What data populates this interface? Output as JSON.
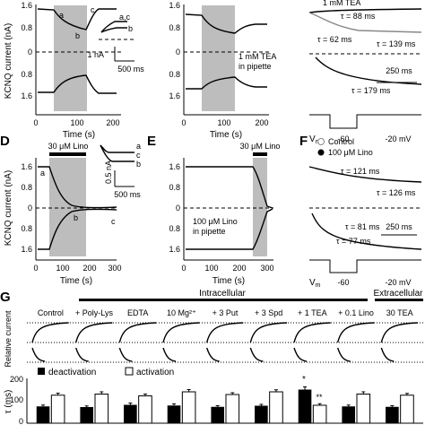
{
  "panels": {
    "A": {
      "ylabel": "KCNQ current (nA)",
      "xlabel": "Time (s)",
      "yticks_top": [
        "1.6",
        "0.8",
        "0",
        "0.8",
        "1.6"
      ],
      "xticks": [
        "0",
        "100",
        "200"
      ],
      "labels": [
        "a",
        "b",
        "c"
      ],
      "inset_labels": [
        "a,c",
        "b"
      ],
      "inset_scale_y": "1 nA",
      "inset_scale_x": "500 ms"
    },
    "B": {
      "yticks": [
        "1.6",
        "0.8",
        "0",
        "0.8",
        "1.6"
      ],
      "xticks": [
        "0",
        "100",
        "200"
      ],
      "xlabel": "Time (s)",
      "note_line1": "1 mM TEA",
      "note_line2": "in pipette"
    },
    "C": {
      "header": "1 mM TEA",
      "taus": [
        "τ = 88 ms",
        "τ = 62 ms",
        "τ = 139 ms",
        "τ = 179 ms"
      ],
      "scale": "250 ms",
      "vm": "V",
      "vm_sub": "m",
      "v1": "-60",
      "v2": "-20 mV"
    },
    "D": {
      "label": "D",
      "drug": "30 μM Lino",
      "ylabel": "KCNQ current (nA)",
      "xlabel": "Time (s)",
      "yticks": [
        "1.6",
        "0.8",
        "0",
        "0.8",
        "1.6"
      ],
      "xticks": [
        "0",
        "100",
        "200",
        "300"
      ],
      "labels": [
        "a",
        "b",
        "c"
      ],
      "inset_labels": [
        "a",
        "c",
        "b"
      ],
      "inset_scale_y": "0.5 nA",
      "inset_scale_x": "500 ms"
    },
    "E": {
      "label": "E",
      "drug": "30 μM Lino",
      "xlabel": "Time (s)",
      "yticks": [
        "1.6",
        "0.8",
        "0",
        "0.8",
        "1.6"
      ],
      "xticks": [
        "0",
        "100",
        "200",
        "300"
      ],
      "note_line1": "100 μM Lino",
      "note_line2": "in pipette"
    },
    "F": {
      "label": "F",
      "legend": [
        "Control",
        "100 μM Lino"
      ],
      "taus": [
        "τ = 121 ms",
        "τ = 126 ms",
        "τ = 81 ms",
        "τ = 77 ms"
      ],
      "scale": "250 ms",
      "vm": "V",
      "vm_sub": "m",
      "v1": "-60",
      "v2": "-20 mV"
    },
    "G": {
      "label": "G",
      "intracellular": "Intracellular",
      "extracellular": "Extracellular",
      "ylabel_top": "Relative current",
      "ylabel_bottom": "τ (ms)",
      "yticks": [
        "200",
        "100",
        "0"
      ],
      "legend_deact": "deactivation",
      "legend_act": "activation",
      "conditions": [
        "Control",
        "+ Poly-Lys",
        "EDTA",
        "10 Mg²⁺",
        "+ 3 Put",
        "+ 3 Spd",
        "+ 1 TEA",
        "+ 0.1 Lino",
        "30 TEA"
      ],
      "star": "*",
      "dstar": "**"
    }
  },
  "chart_data": {
    "type": "bar",
    "title": "",
    "ylabel": "τ (ms)",
    "ylim": [
      0,
      200
    ],
    "categories": [
      "Control",
      "+ Poly-Lys",
      "EDTA",
      "10 Mg²⁺",
      "+ 3 Put",
      "+ 3 Spd",
      "+ 1 TEA",
      "+ 0.1 Lino",
      "30 TEA"
    ],
    "series": [
      {
        "name": "deactivation",
        "values": [
          75,
          72,
          82,
          79,
          73,
          78,
          150,
          75,
          73
        ],
        "errors": [
          6,
          5,
          8,
          7,
          5,
          6,
          12,
          6,
          5
        ]
      },
      {
        "name": "activation",
        "values": [
          125,
          130,
          122,
          140,
          128,
          140,
          80,
          130,
          125
        ],
        "errors": [
          9,
          10,
          8,
          10,
          8,
          9,
          7,
          10,
          8
        ]
      }
    ]
  }
}
